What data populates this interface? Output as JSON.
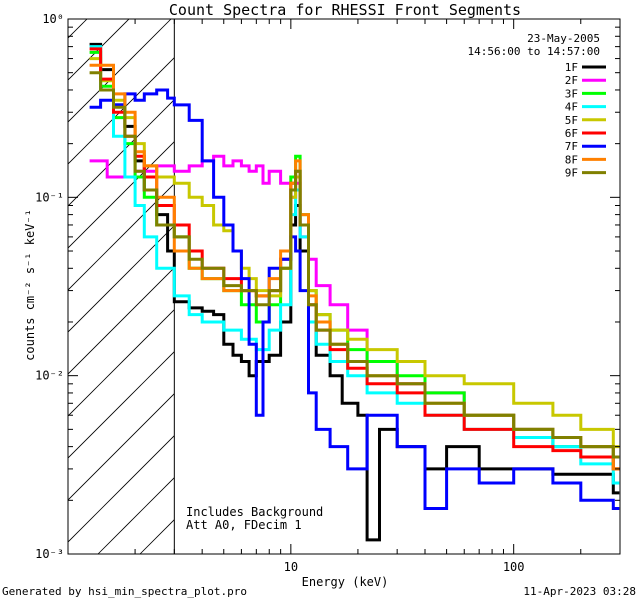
{
  "chart_data": {
    "type": "line",
    "title": "Count Spectra for RHESSI Front Segments",
    "xlabel": "Energy (keV)",
    "ylabel": "counts cm⁻² s⁻¹ keV⁻¹",
    "xscale": "log",
    "yscale": "log",
    "xlim": [
      1,
      300
    ],
    "ylim": [
      0.001,
      1
    ],
    "x_ticks": [
      {
        "value": 10,
        "label": "10"
      },
      {
        "value": 100,
        "label": "100"
      }
    ],
    "y_ticks": [
      {
        "value": 1,
        "label": "10⁰"
      },
      {
        "value": 0.1,
        "label": "10⁻¹"
      },
      {
        "value": 0.01,
        "label": "10⁻²"
      },
      {
        "value": 0.001,
        "label": "10⁻³"
      }
    ],
    "hatched_region_max_energy": 3,
    "legend_date": "23-May-2005",
    "legend_time": "14:56:00 to 14:57:00",
    "annotations": [
      "Includes Background",
      "Att A0, FDecim 1"
    ],
    "series": [
      {
        "name": "1F",
        "color": "#000000",
        "points": [
          [
            1.25,
            0.72
          ],
          [
            1.4,
            0.52
          ],
          [
            1.6,
            0.33
          ],
          [
            1.8,
            0.25
          ],
          [
            2.0,
            0.16
          ],
          [
            2.2,
            0.11
          ],
          [
            2.5,
            0.08
          ],
          [
            2.8,
            0.05
          ],
          [
            3.0,
            0.026
          ],
          [
            3.5,
            0.024
          ],
          [
            4.0,
            0.023
          ],
          [
            4.5,
            0.022
          ],
          [
            5.0,
            0.015
          ],
          [
            5.5,
            0.013
          ],
          [
            6.0,
            0.012
          ],
          [
            6.5,
            0.01
          ],
          [
            7.0,
            0.012
          ],
          [
            8.0,
            0.013
          ],
          [
            9.0,
            0.02
          ],
          [
            10.0,
            0.07
          ],
          [
            10.5,
            0.09
          ],
          [
            11.0,
            0.05
          ],
          [
            12.0,
            0.02
          ],
          [
            13.0,
            0.013
          ],
          [
            15.0,
            0.01
          ],
          [
            17.0,
            0.007
          ],
          [
            20.0,
            0.006
          ],
          [
            22.0,
            0.0012
          ],
          [
            25.0,
            0.005
          ],
          [
            30.0,
            0.004
          ],
          [
            40.0,
            0.003
          ],
          [
            50.0,
            0.004
          ],
          [
            70.0,
            0.003
          ],
          [
            100.0,
            0.003
          ],
          [
            150.0,
            0.0028
          ],
          [
            200.0,
            0.0028
          ],
          [
            280.0,
            0.0022
          ]
        ]
      },
      {
        "name": "2F",
        "color": "#ff00ff",
        "points": [
          [
            1.25,
            0.16
          ],
          [
            1.5,
            0.13
          ],
          [
            2.0,
            0.14
          ],
          [
            2.5,
            0.15
          ],
          [
            3.0,
            0.14
          ],
          [
            3.5,
            0.15
          ],
          [
            4.0,
            0.16
          ],
          [
            4.5,
            0.17
          ],
          [
            5.0,
            0.15
          ],
          [
            5.5,
            0.16
          ],
          [
            6.0,
            0.15
          ],
          [
            6.5,
            0.14
          ],
          [
            7.0,
            0.15
          ],
          [
            7.5,
            0.12
          ],
          [
            8.0,
            0.14
          ],
          [
            9.0,
            0.12
          ],
          [
            10.0,
            0.1
          ],
          [
            10.5,
            0.12
          ],
          [
            11.0,
            0.06
          ],
          [
            12.0,
            0.045
          ],
          [
            13.0,
            0.032
          ],
          [
            15.0,
            0.025
          ],
          [
            18.0,
            0.018
          ],
          [
            22.0,
            0.012
          ],
          [
            30.0,
            0.009
          ],
          [
            40.0,
            0.008
          ],
          [
            60.0,
            0.006
          ],
          [
            100.0,
            0.005
          ],
          [
            150.0,
            0.004
          ],
          [
            200.0,
            0.004
          ],
          [
            280.0,
            0.003
          ]
        ]
      },
      {
        "name": "3F",
        "color": "#00ff00",
        "points": [
          [
            1.25,
            0.65
          ],
          [
            1.4,
            0.42
          ],
          [
            1.6,
            0.28
          ],
          [
            1.8,
            0.2
          ],
          [
            2.0,
            0.13
          ],
          [
            2.2,
            0.1
          ],
          [
            2.5,
            0.07
          ],
          [
            3.0,
            0.06
          ],
          [
            3.5,
            0.04
          ],
          [
            4.0,
            0.035
          ],
          [
            5.0,
            0.03
          ],
          [
            6.0,
            0.025
          ],
          [
            7.0,
            0.02
          ],
          [
            8.0,
            0.025
          ],
          [
            9.0,
            0.04
          ],
          [
            10.0,
            0.13
          ],
          [
            10.5,
            0.17
          ],
          [
            11.0,
            0.08
          ],
          [
            12.0,
            0.03
          ],
          [
            13.0,
            0.022
          ],
          [
            15.0,
            0.018
          ],
          [
            18.0,
            0.014
          ],
          [
            22.0,
            0.012
          ],
          [
            30.0,
            0.01
          ],
          [
            40.0,
            0.008
          ],
          [
            60.0,
            0.006
          ],
          [
            100.0,
            0.005
          ],
          [
            150.0,
            0.004
          ],
          [
            200.0,
            0.004
          ],
          [
            280.0,
            0.003
          ]
        ]
      },
      {
        "name": "4F",
        "color": "#00ffff",
        "points": [
          [
            1.25,
            0.7
          ],
          [
            1.4,
            0.4
          ],
          [
            1.6,
            0.22
          ],
          [
            1.8,
            0.13
          ],
          [
            2.0,
            0.09
          ],
          [
            2.2,
            0.06
          ],
          [
            2.5,
            0.04
          ],
          [
            3.0,
            0.028
          ],
          [
            3.5,
            0.022
          ],
          [
            4.0,
            0.02
          ],
          [
            5.0,
            0.018
          ],
          [
            6.0,
            0.016
          ],
          [
            7.0,
            0.014
          ],
          [
            8.0,
            0.018
          ],
          [
            9.0,
            0.025
          ],
          [
            10.0,
            0.08
          ],
          [
            10.5,
            0.11
          ],
          [
            11.0,
            0.06
          ],
          [
            12.0,
            0.02
          ],
          [
            13.0,
            0.015
          ],
          [
            15.0,
            0.012
          ],
          [
            18.0,
            0.01
          ],
          [
            22.0,
            0.008
          ],
          [
            30.0,
            0.007
          ],
          [
            40.0,
            0.006
          ],
          [
            60.0,
            0.005
          ],
          [
            100.0,
            0.0045
          ],
          [
            150.0,
            0.004
          ],
          [
            200.0,
            0.0032
          ],
          [
            280.0,
            0.0025
          ]
        ]
      },
      {
        "name": "5F",
        "color": "#c8c800",
        "points": [
          [
            1.25,
            0.6
          ],
          [
            1.4,
            0.45
          ],
          [
            1.6,
            0.35
          ],
          [
            1.8,
            0.28
          ],
          [
            2.0,
            0.2
          ],
          [
            2.2,
            0.15
          ],
          [
            2.5,
            0.13
          ],
          [
            3.0,
            0.12
          ],
          [
            3.5,
            0.1
          ],
          [
            4.0,
            0.09
          ],
          [
            4.5,
            0.07
          ],
          [
            5.0,
            0.065
          ],
          [
            5.5,
            0.05
          ],
          [
            6.0,
            0.04
          ],
          [
            6.5,
            0.035
          ],
          [
            7.0,
            0.03
          ],
          [
            8.0,
            0.028
          ],
          [
            9.0,
            0.04
          ],
          [
            10.0,
            0.1
          ],
          [
            10.5,
            0.13
          ],
          [
            11.0,
            0.07
          ],
          [
            12.0,
            0.03
          ],
          [
            13.0,
            0.022
          ],
          [
            15.0,
            0.018
          ],
          [
            18.0,
            0.016
          ],
          [
            22.0,
            0.014
          ],
          [
            30.0,
            0.012
          ],
          [
            40.0,
            0.01
          ],
          [
            60.0,
            0.009
          ],
          [
            100.0,
            0.007
          ],
          [
            150.0,
            0.006
          ],
          [
            200.0,
            0.005
          ],
          [
            280.0,
            0.004
          ]
        ]
      },
      {
        "name": "6F",
        "color": "#ff0000",
        "points": [
          [
            1.25,
            0.68
          ],
          [
            1.4,
            0.46
          ],
          [
            1.6,
            0.3
          ],
          [
            1.8,
            0.22
          ],
          [
            2.0,
            0.17
          ],
          [
            2.2,
            0.13
          ],
          [
            2.5,
            0.09
          ],
          [
            3.0,
            0.07
          ],
          [
            3.5,
            0.05
          ],
          [
            4.0,
            0.04
          ],
          [
            5.0,
            0.035
          ],
          [
            6.0,
            0.03
          ],
          [
            7.0,
            0.028
          ],
          [
            8.0,
            0.03
          ],
          [
            9.0,
            0.045
          ],
          [
            10.0,
            0.12
          ],
          [
            10.5,
            0.14
          ],
          [
            11.0,
            0.07
          ],
          [
            12.0,
            0.025
          ],
          [
            13.0,
            0.018
          ],
          [
            15.0,
            0.014
          ],
          [
            18.0,
            0.011
          ],
          [
            22.0,
            0.009
          ],
          [
            30.0,
            0.008
          ],
          [
            40.0,
            0.006
          ],
          [
            60.0,
            0.005
          ],
          [
            100.0,
            0.004
          ],
          [
            150.0,
            0.0038
          ],
          [
            200.0,
            0.0035
          ],
          [
            280.0,
            0.003
          ]
        ]
      },
      {
        "name": "7F",
        "color": "#0000ff",
        "points": [
          [
            1.25,
            0.32
          ],
          [
            1.4,
            0.35
          ],
          [
            1.6,
            0.33
          ],
          [
            1.8,
            0.38
          ],
          [
            2.0,
            0.35
          ],
          [
            2.2,
            0.38
          ],
          [
            2.5,
            0.4
          ],
          [
            2.8,
            0.36
          ],
          [
            3.0,
            0.33
          ],
          [
            3.5,
            0.27
          ],
          [
            4.0,
            0.16
          ],
          [
            4.5,
            0.1
          ],
          [
            5.0,
            0.07
          ],
          [
            5.5,
            0.05
          ],
          [
            6.0,
            0.035
          ],
          [
            6.5,
            0.015
          ],
          [
            7.0,
            0.006
          ],
          [
            7.5,
            0.02
          ],
          [
            8.0,
            0.04
          ],
          [
            9.0,
            0.045
          ],
          [
            10.0,
            0.06
          ],
          [
            10.5,
            0.05
          ],
          [
            11.0,
            0.03
          ],
          [
            12.0,
            0.008
          ],
          [
            13.0,
            0.005
          ],
          [
            15.0,
            0.004
          ],
          [
            18.0,
            0.003
          ],
          [
            22.0,
            0.006
          ],
          [
            30.0,
            0.004
          ],
          [
            40.0,
            0.0018
          ],
          [
            50.0,
            0.003
          ],
          [
            70.0,
            0.0025
          ],
          [
            100.0,
            0.003
          ],
          [
            150.0,
            0.0025
          ],
          [
            200.0,
            0.002
          ],
          [
            280.0,
            0.0018
          ]
        ]
      },
      {
        "name": "8F",
        "color": "#ff8000",
        "points": [
          [
            1.25,
            0.55
          ],
          [
            1.4,
            0.55
          ],
          [
            1.6,
            0.38
          ],
          [
            1.8,
            0.3
          ],
          [
            2.0,
            0.18
          ],
          [
            2.2,
            0.15
          ],
          [
            2.5,
            0.1
          ],
          [
            3.0,
            0.05
          ],
          [
            3.5,
            0.04
          ],
          [
            4.0,
            0.035
          ],
          [
            5.0,
            0.03
          ],
          [
            6.0,
            0.03
          ],
          [
            7.0,
            0.028
          ],
          [
            8.0,
            0.035
          ],
          [
            9.0,
            0.05
          ],
          [
            10.0,
            0.12
          ],
          [
            10.5,
            0.16
          ],
          [
            11.0,
            0.08
          ],
          [
            12.0,
            0.028
          ],
          [
            13.0,
            0.02
          ],
          [
            15.0,
            0.015
          ],
          [
            18.0,
            0.012
          ],
          [
            22.0,
            0.01
          ],
          [
            30.0,
            0.009
          ],
          [
            40.0,
            0.007
          ],
          [
            60.0,
            0.006
          ],
          [
            100.0,
            0.005
          ],
          [
            150.0,
            0.0045
          ],
          [
            200.0,
            0.004
          ],
          [
            280.0,
            0.003
          ]
        ]
      },
      {
        "name": "9F",
        "color": "#808000",
        "points": [
          [
            1.25,
            0.5
          ],
          [
            1.4,
            0.4
          ],
          [
            1.6,
            0.32
          ],
          [
            1.8,
            0.22
          ],
          [
            2.0,
            0.14
          ],
          [
            2.2,
            0.11
          ],
          [
            2.5,
            0.07
          ],
          [
            3.0,
            0.06
          ],
          [
            3.5,
            0.045
          ],
          [
            4.0,
            0.04
          ],
          [
            5.0,
            0.032
          ],
          [
            6.0,
            0.03
          ],
          [
            7.0,
            0.025
          ],
          [
            8.0,
            0.03
          ],
          [
            9.0,
            0.04
          ],
          [
            10.0,
            0.11
          ],
          [
            10.5,
            0.14
          ],
          [
            11.0,
            0.07
          ],
          [
            12.0,
            0.025
          ],
          [
            13.0,
            0.018
          ],
          [
            15.0,
            0.015
          ],
          [
            18.0,
            0.012
          ],
          [
            22.0,
            0.01
          ],
          [
            30.0,
            0.009
          ],
          [
            40.0,
            0.007
          ],
          [
            60.0,
            0.006
          ],
          [
            100.0,
            0.005
          ],
          [
            150.0,
            0.0045
          ],
          [
            200.0,
            0.004
          ],
          [
            280.0,
            0.0035
          ]
        ]
      }
    ]
  },
  "footer": {
    "left": "Generated by hsi_min_spectra_plot.pro",
    "right": "11-Apr-2023 03:28"
  }
}
